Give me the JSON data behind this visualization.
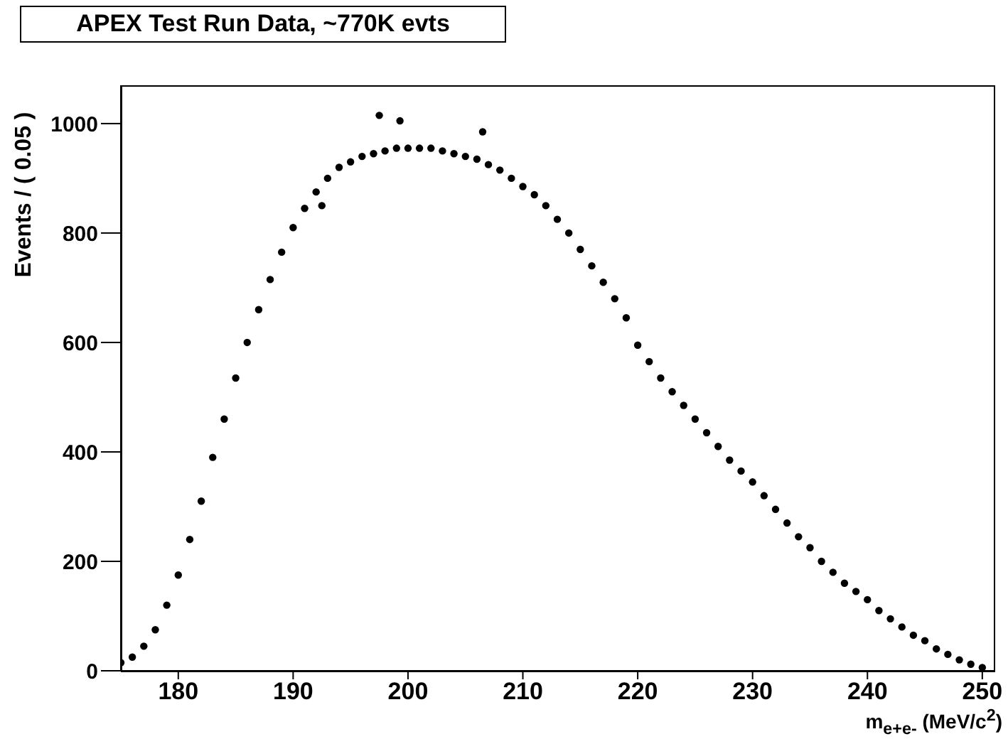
{
  "chart_data": {
    "type": "scatter",
    "title": "APEX Test Run Data, ~770K evts",
    "xlabel": "m$_{e+e-}$ (MeV/c$^{2}$)",
    "ylabel": "Events / ( 0.05 )",
    "xlim": [
      175,
      251
    ],
    "ylim": [
      0,
      1070
    ],
    "xticks": [
      180,
      190,
      200,
      210,
      220,
      230,
      240,
      250
    ],
    "yticks": [
      0,
      200,
      400,
      600,
      800,
      1000
    ],
    "marker": "circle",
    "series": [
      {
        "color": "#000000",
        "x": [
          175,
          176,
          177,
          178,
          179,
          180,
          181,
          182,
          183,
          184,
          185,
          186,
          187,
          188,
          189,
          190,
          191,
          192,
          192.5,
          193,
          194,
          195,
          196,
          197,
          197.5,
          198,
          199,
          199.3,
          200,
          201,
          202,
          203,
          204,
          205,
          206,
          206.5,
          207,
          208,
          209,
          210,
          211,
          212,
          213,
          214,
          215,
          216,
          217,
          218,
          219,
          220,
          221,
          222,
          223,
          224,
          225,
          226,
          227,
          228,
          229,
          230,
          231,
          232,
          233,
          234,
          235,
          236,
          237,
          238,
          239,
          240,
          241,
          242,
          243,
          244,
          245,
          246,
          247,
          248,
          249,
          250
        ],
        "values": [
          15,
          25,
          45,
          75,
          120,
          175,
          240,
          310,
          390,
          460,
          535,
          600,
          660,
          715,
          765,
          810,
          845,
          875,
          850,
          900,
          920,
          930,
          940,
          945,
          1015,
          950,
          955,
          1005,
          955,
          955,
          955,
          950,
          945,
          940,
          935,
          985,
          925,
          915,
          900,
          885,
          870,
          850,
          825,
          800,
          770,
          740,
          710,
          680,
          645,
          595,
          565,
          535,
          510,
          485,
          460,
          435,
          410,
          385,
          365,
          345,
          320,
          295,
          270,
          245,
          225,
          200,
          180,
          160,
          145,
          130,
          110,
          95,
          80,
          65,
          55,
          40,
          30,
          20,
          12,
          6
        ]
      }
    ]
  }
}
